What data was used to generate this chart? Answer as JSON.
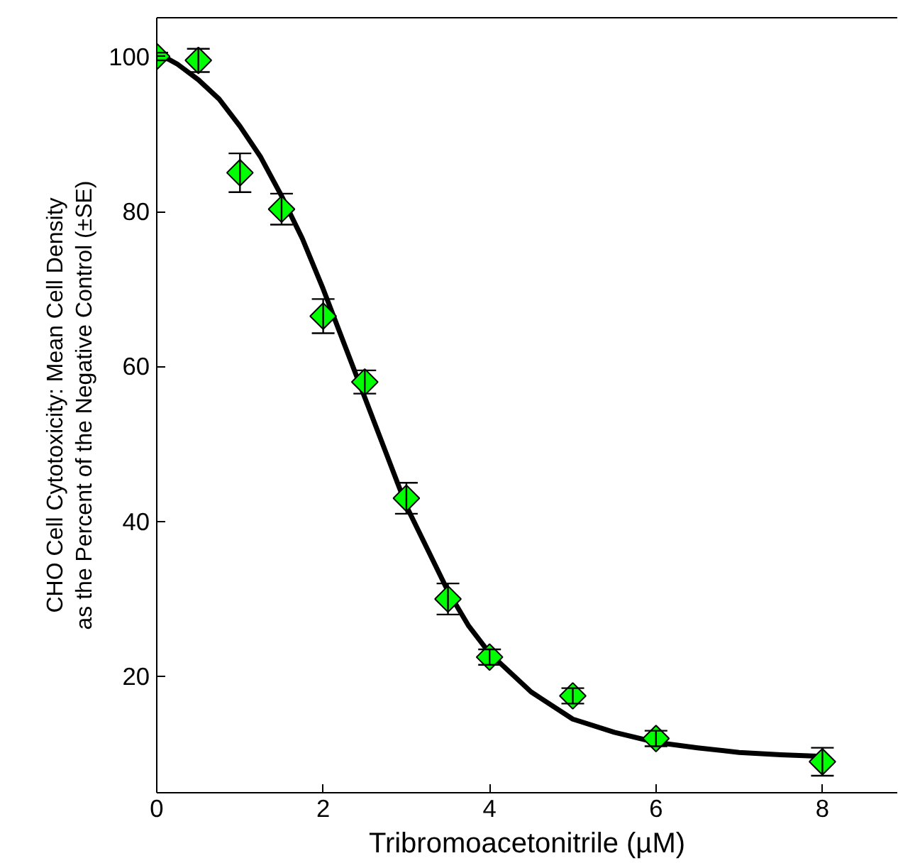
{
  "chart_data": {
    "type": "scatter",
    "xlabel": "Tribromoacetonitrile (µM)",
    "ylabel": "CHO Cell Cytotoxicity: Mean Cell Density\nas the Percent of the Negative Control (±SE)",
    "xlim": [
      0,
      8.9
    ],
    "ylim": [
      5,
      105
    ],
    "xticks": [
      0,
      2,
      4,
      6,
      8
    ],
    "yticks": [
      20,
      40,
      60,
      80,
      100
    ],
    "series": [
      {
        "type": "line",
        "color": "#000000",
        "x": [
          0,
          0.25,
          0.5,
          0.75,
          1,
          1.25,
          1.5,
          1.75,
          2,
          2.25,
          2.5,
          2.75,
          3,
          3.25,
          3.5,
          3.75,
          4,
          4.5,
          5,
          5.5,
          6,
          6.5,
          7,
          7.5,
          8
        ],
        "values": [
          100.5,
          99,
          97,
          94.5,
          91,
          87,
          82,
          76.5,
          70,
          63,
          56,
          49,
          42,
          36.5,
          31,
          26.5,
          23,
          18,
          14.5,
          12.8,
          11.5,
          10.8,
          10.2,
          9.9,
          9.7
        ]
      },
      {
        "color": "#00ff00",
        "marker": "diamond",
        "x": [
          0,
          0.5,
          1,
          1.5,
          2,
          2.5,
          3,
          3.5,
          4,
          5,
          6,
          8
        ],
        "values": [
          100,
          99.5,
          85,
          80.3,
          66.5,
          58,
          43,
          30,
          22.5,
          17.5,
          12,
          9
        ],
        "errors": [
          0.5,
          1.5,
          2.5,
          2,
          2.2,
          1.5,
          2,
          2,
          1,
          1,
          1,
          1.8
        ]
      }
    ]
  }
}
